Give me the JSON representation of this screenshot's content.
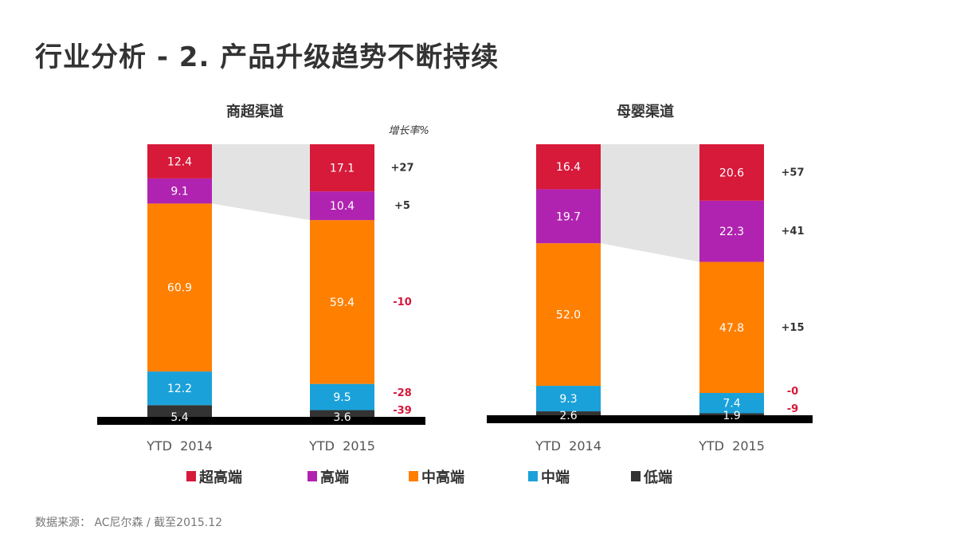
{
  "title": "行业分析 - 2. 产品升级趋势不断持续",
  "source": "数据来源： AC尼尔森 / 截至2015.12",
  "legend": [
    {
      "label": "超高端",
      "color": "#d7193a"
    },
    {
      "label": "高端",
      "color": "#b023b0"
    },
    {
      "label": "中高端",
      "color": "#ff7f00"
    },
    {
      "label": "中端",
      "color": "#1ba1d9"
    },
    {
      "label": "低端",
      "color": "#333333"
    }
  ],
  "chart_data": [
    {
      "type": "bar",
      "stacked": true,
      "title": "商超渠道",
      "growth_header": "增长率%",
      "categories": [
        "YTD  2014",
        "YTD  2015"
      ],
      "series": [
        {
          "name": "低端",
          "values": [
            5.4,
            3.6
          ],
          "growth": "-39"
        },
        {
          "name": "中端",
          "values": [
            12.2,
            9.5
          ],
          "growth": "-28"
        },
        {
          "name": "中高端",
          "values": [
            60.9,
            59.4
          ],
          "growth": "-10"
        },
        {
          "name": "高端",
          "values": [
            9.1,
            10.4
          ],
          "growth": "+5"
        },
        {
          "name": "超高端",
          "values": [
            12.4,
            17.1
          ],
          "growth": "+27"
        }
      ],
      "ylim": [
        0,
        100
      ]
    },
    {
      "type": "bar",
      "stacked": true,
      "title": "母婴渠道",
      "categories": [
        "YTD  2014",
        "YTD  2015"
      ],
      "series": [
        {
          "name": "低端",
          "values": [
            2.6,
            1.9
          ],
          "growth": "-9"
        },
        {
          "name": "中端",
          "values": [
            9.3,
            7.4
          ],
          "growth": "-0"
        },
        {
          "name": "中高端",
          "values": [
            52.0,
            47.8
          ],
          "growth": "+15"
        },
        {
          "name": "高端",
          "values": [
            19.7,
            22.3
          ],
          "growth": "+41"
        },
        {
          "name": "超高端",
          "values": [
            16.4,
            20.6
          ],
          "growth": "+57"
        }
      ],
      "ylim": [
        0,
        100
      ]
    }
  ]
}
